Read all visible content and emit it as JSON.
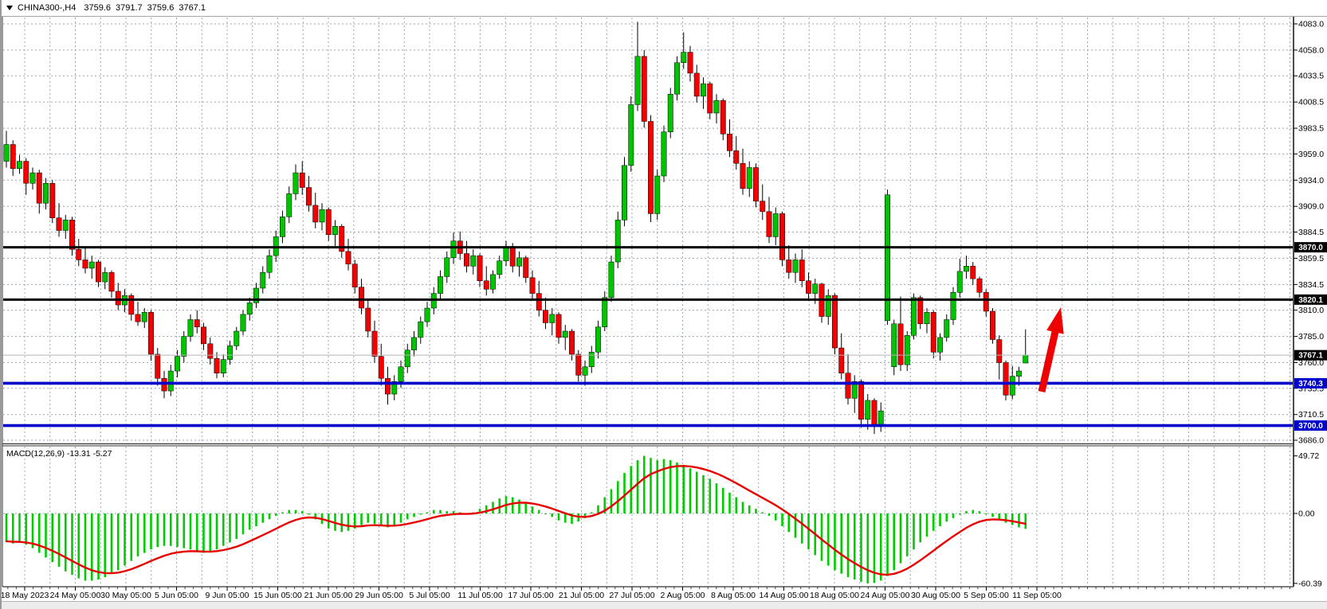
{
  "topbar": {
    "symbol": "CHINA300-,H4",
    "open": "3759.6",
    "high": "3791.7",
    "low": "3759.6",
    "close": "3767.1"
  },
  "colors": {
    "bull": "#00c400",
    "bear": "#f40000",
    "wick": "#000000",
    "grid": "#9aa5b0",
    "black_line": "#000000",
    "blue_line": "#0000cc",
    "current_price_line": "#b4b4b4",
    "macd_bar": "#00cc00",
    "signal_line": "#e80000",
    "arrow": "#ee0000",
    "axis_text": "#000000",
    "label_text": "#ffffff"
  },
  "chart_data": {
    "type": "candlestick+macd",
    "symbol": "CHINA300",
    "timeframe": "H4",
    "title": "CHINA300-,H4  3759.6 3791.7 3759.6 3767.1",
    "x_labels": [
      "18 May 2023",
      "24 May 05:00",
      "30 May 05:00",
      "5 Jun 05:00",
      "9 Jun 05:00",
      "15 Jun 05:00",
      "21 Jun 05:00",
      "29 Jun 05:00",
      "5 Jul 05:00",
      "11 Jul 05:00",
      "17 Jul 05:00",
      "21 Jul 05:00",
      "27 Jul 05:00",
      "2 Aug 05:00",
      "8 Aug 05:00",
      "14 Aug 05:00",
      "18 Aug 05:00",
      "24 Aug 05:00",
      "30 Aug 05:00",
      "5 Sep 05:00",
      "11 Sep 05:00"
    ],
    "price_axis_ticks": [
      4083.0,
      4058.0,
      4033.5,
      4008.5,
      3983.5,
      3959.0,
      3934.0,
      3909.0,
      3884.5,
      3859.5,
      3834.5,
      3810.0,
      3785.0,
      3760.0,
      3735.5,
      3710.5,
      3686.0
    ],
    "price_range": [
      3686.0,
      4083.0
    ],
    "grid": true,
    "horizontal_lines": [
      {
        "price": 3870.0,
        "label": "3870.0",
        "color": "#000000"
      },
      {
        "price": 3820.1,
        "label": "3820.1",
        "color": "#000000"
      },
      {
        "price": 3740.3,
        "label": "3740.3",
        "color": "#0000cc"
      },
      {
        "price": 3700.0,
        "label": "3700.0",
        "color": "#0000cc"
      }
    ],
    "current_price": 3767.1,
    "current_price_label": "3767.1",
    "annotation_arrow": {
      "from": [
        1307,
        492
      ],
      "to": [
        1331,
        386
      ]
    },
    "candles": [
      [
        3952,
        3981,
        3946,
        3968
      ],
      [
        3968,
        3972,
        3938,
        3945
      ],
      [
        3945,
        3958,
        3940,
        3952
      ],
      [
        3952,
        3955,
        3920,
        3931
      ],
      [
        3931,
        3946,
        3925,
        3941
      ],
      [
        3941,
        3944,
        3902,
        3912
      ],
      [
        3912,
        3936,
        3906,
        3931
      ],
      [
        3931,
        3934,
        3893,
        3898
      ],
      [
        3898,
        3912,
        3880,
        3886
      ],
      [
        3886,
        3901,
        3878,
        3896
      ],
      [
        3896,
        3899,
        3862,
        3868
      ],
      [
        3868,
        3878,
        3852,
        3858
      ],
      [
        3858,
        3870,
        3845,
        3850
      ],
      [
        3850,
        3862,
        3840,
        3856
      ],
      [
        3856,
        3858,
        3832,
        3837
      ],
      [
        3837,
        3851,
        3830,
        3846
      ],
      [
        3846,
        3848,
        3822,
        3828
      ],
      [
        3828,
        3836,
        3810,
        3815
      ],
      [
        3815,
        3830,
        3808,
        3824
      ],
      [
        3824,
        3826,
        3800,
        3806
      ],
      [
        3806,
        3818,
        3795,
        3799
      ],
      [
        3799,
        3812,
        3793,
        3808
      ],
      [
        3808,
        3810,
        3762,
        3768
      ],
      [
        3768,
        3774,
        3738,
        3745
      ],
      [
        3745,
        3752,
        3726,
        3733
      ],
      [
        3733,
        3758,
        3728,
        3752
      ],
      [
        3752,
        3772,
        3746,
        3766
      ],
      [
        3766,
        3790,
        3760,
        3785
      ],
      [
        3785,
        3806,
        3780,
        3801
      ],
      [
        3801,
        3810,
        3788,
        3794
      ],
      [
        3794,
        3798,
        3772,
        3778
      ],
      [
        3778,
        3784,
        3758,
        3764
      ],
      [
        3764,
        3770,
        3745,
        3750
      ],
      [
        3750,
        3768,
        3746,
        3763
      ],
      [
        3763,
        3781,
        3758,
        3776
      ],
      [
        3776,
        3794,
        3772,
        3790
      ],
      [
        3790,
        3810,
        3786,
        3806
      ],
      [
        3806,
        3822,
        3800,
        3817
      ],
      [
        3817,
        3836,
        3812,
        3831
      ],
      [
        3831,
        3852,
        3826,
        3846
      ],
      [
        3846,
        3868,
        3840,
        3862
      ],
      [
        3862,
        3886,
        3856,
        3880
      ],
      [
        3880,
        3905,
        3874,
        3899
      ],
      [
        3899,
        3928,
        3893,
        3921
      ],
      [
        3921,
        3949,
        3915,
        3941
      ],
      [
        3941,
        3952,
        3920,
        3927
      ],
      [
        3927,
        3938,
        3904,
        3910
      ],
      [
        3910,
        3922,
        3888,
        3894
      ],
      [
        3894,
        3912,
        3886,
        3906
      ],
      [
        3906,
        3908,
        3876,
        3882
      ],
      [
        3882,
        3896,
        3870,
        3890
      ],
      [
        3890,
        3892,
        3860,
        3866
      ],
      [
        3866,
        3878,
        3848,
        3854
      ],
      [
        3854,
        3858,
        3826,
        3832
      ],
      [
        3832,
        3840,
        3806,
        3812
      ],
      [
        3812,
        3820,
        3784,
        3790
      ],
      [
        3790,
        3800,
        3760,
        3766
      ],
      [
        3766,
        3778,
        3738,
        3745
      ],
      [
        3745,
        3756,
        3720,
        3730
      ],
      [
        3730,
        3748,
        3724,
        3742
      ],
      [
        3742,
        3762,
        3736,
        3756
      ],
      [
        3756,
        3778,
        3750,
        3772
      ],
      [
        3772,
        3790,
        3766,
        3784
      ],
      [
        3784,
        3804,
        3778,
        3799
      ],
      [
        3799,
        3818,
        3794,
        3812
      ],
      [
        3812,
        3832,
        3806,
        3826
      ],
      [
        3826,
        3848,
        3820,
        3842
      ],
      [
        3842,
        3866,
        3836,
        3860
      ],
      [
        3860,
        3884,
        3854,
        3876
      ],
      [
        3876,
        3885,
        3858,
        3864
      ],
      [
        3864,
        3876,
        3846,
        3852
      ],
      [
        3852,
        3868,
        3844,
        3862
      ],
      [
        3862,
        3864,
        3832,
        3838
      ],
      [
        3838,
        3852,
        3824,
        3830
      ],
      [
        3830,
        3848,
        3826,
        3844
      ],
      [
        3844,
        3862,
        3840,
        3857
      ],
      [
        3857,
        3876,
        3852,
        3870
      ],
      [
        3870,
        3874,
        3846,
        3852
      ],
      [
        3852,
        3866,
        3842,
        3860
      ],
      [
        3860,
        3862,
        3836,
        3841
      ],
      [
        3841,
        3848,
        3820,
        3826
      ],
      [
        3826,
        3838,
        3804,
        3810
      ],
      [
        3810,
        3822,
        3792,
        3798
      ],
      [
        3798,
        3812,
        3786,
        3806
      ],
      [
        3806,
        3808,
        3778,
        3784
      ],
      [
        3784,
        3796,
        3772,
        3790
      ],
      [
        3790,
        3792,
        3762,
        3768
      ],
      [
        3768,
        3772,
        3742,
        3748
      ],
      [
        3748,
        3762,
        3738,
        3756
      ],
      [
        3756,
        3776,
        3750,
        3770
      ],
      [
        3770,
        3800,
        3764,
        3794
      ],
      [
        3794,
        3828,
        3790,
        3822
      ],
      [
        3822,
        3862,
        3818,
        3856
      ],
      [
        3856,
        3904,
        3850,
        3896
      ],
      [
        3896,
        3956,
        3890,
        3948
      ],
      [
        3948,
        4014,
        3942,
        4006
      ],
      [
        4006,
        4085,
        4000,
        4052
      ],
      [
        4052,
        4058,
        3984,
        3990
      ],
      [
        3990,
        3996,
        3894,
        3902
      ],
      [
        3902,
        3944,
        3896,
        3938
      ],
      [
        3938,
        3986,
        3932,
        3980
      ],
      [
        3980,
        4022,
        3974,
        4016
      ],
      [
        4016,
        4052,
        4010,
        4046
      ],
      [
        4046,
        4075,
        4040,
        4056
      ],
      [
        4056,
        4062,
        4028,
        4036
      ],
      [
        4036,
        4044,
        4008,
        4014
      ],
      [
        4014,
        4032,
        4002,
        4026
      ],
      [
        4026,
        4028,
        3992,
        3998
      ],
      [
        3998,
        4016,
        3988,
        4010
      ],
      [
        4010,
        4012,
        3972,
        3978
      ],
      [
        3978,
        3992,
        3956,
        3962
      ],
      [
        3962,
        3976,
        3944,
        3950
      ],
      [
        3950,
        3964,
        3920,
        3926
      ],
      [
        3926,
        3952,
        3918,
        3946
      ],
      [
        3946,
        3950,
        3908,
        3914
      ],
      [
        3914,
        3930,
        3896,
        3904
      ],
      [
        3904,
        3918,
        3874,
        3880
      ],
      [
        3880,
        3908,
        3872,
        3902
      ],
      [
        3902,
        3904,
        3852,
        3858
      ],
      [
        3858,
        3872,
        3840,
        3846
      ],
      [
        3846,
        3864,
        3836,
        3858
      ],
      [
        3858,
        3868,
        3832,
        3838
      ],
      [
        3838,
        3846,
        3820,
        3826
      ],
      [
        3826,
        3840,
        3816,
        3835
      ],
      [
        3835,
        3836,
        3798,
        3804
      ],
      [
        3804,
        3830,
        3796,
        3824
      ],
      [
        3824,
        3826,
        3768,
        3774
      ],
      [
        3774,
        3788,
        3744,
        3750
      ],
      [
        3750,
        3768,
        3720,
        3726
      ],
      [
        3726,
        3748,
        3712,
        3742
      ],
      [
        3742,
        3744,
        3698,
        3706
      ],
      [
        3706,
        3730,
        3696,
        3724
      ],
      [
        3724,
        3726,
        3692,
        3699
      ],
      [
        3699,
        3722,
        3694,
        3714
      ],
      [
        3800,
        3925,
        3796,
        3920
      ],
      [
        3756,
        3801,
        3748,
        3797
      ],
      [
        3797,
        3823,
        3752,
        3758
      ],
      [
        3758,
        3790,
        3752,
        3786
      ],
      [
        3786,
        3826,
        3782,
        3822
      ],
      [
        3822,
        3824,
        3792,
        3797
      ],
      [
        3797,
        3812,
        3788,
        3808
      ],
      [
        3808,
        3810,
        3764,
        3770
      ],
      [
        3770,
        3788,
        3762,
        3784
      ],
      [
        3784,
        3806,
        3780,
        3801
      ],
      [
        3801,
        3832,
        3796,
        3827
      ],
      [
        3827,
        3859,
        3822,
        3847
      ],
      [
        3847,
        3862,
        3840,
        3852
      ],
      [
        3852,
        3856,
        3834,
        3840
      ],
      [
        3840,
        3842,
        3822,
        3827
      ],
      [
        3827,
        3830,
        3804,
        3809
      ],
      [
        3809,
        3812,
        3778,
        3782
      ],
      [
        3782,
        3786,
        3744,
        3760
      ],
      [
        3760,
        3762,
        3724,
        3729
      ],
      [
        3729,
        3757,
        3725,
        3747
      ],
      [
        3747,
        3756,
        3738,
        3752
      ],
      [
        3759.6,
        3791.7,
        3759.6,
        3767.1
      ]
    ],
    "macd": {
      "label": "MACD(12,26,9)",
      "macd_value": -13.31,
      "signal_value": -5.27,
      "display": "MACD(12,26,9) -13.31 -5.27",
      "axis_ticks": [
        49.72,
        0.0,
        -60.39
      ],
      "signal_ema_period": 9,
      "histogram": [
        -24,
        -26,
        -25,
        -27,
        -30,
        -34,
        -38,
        -42,
        -46,
        -50,
        -53,
        -56,
        -58,
        -58,
        -57,
        -55,
        -52,
        -49,
        -45,
        -41,
        -37,
        -34,
        -31,
        -29,
        -28,
        -28,
        -29,
        -30,
        -31,
        -33,
        -34,
        -33,
        -31,
        -28,
        -25,
        -22,
        -18,
        -14,
        -11,
        -8,
        -5,
        -2,
        1,
        3,
        3,
        2,
        -1,
        -5,
        -9,
        -13,
        -15,
        -16,
        -15,
        -13,
        -10,
        -8,
        -9,
        -11,
        -12,
        -10,
        -8,
        -5,
        -3,
        -1,
        1,
        3,
        3,
        2,
        2,
        1,
        -1,
        1,
        4,
        7,
        10,
        13,
        15,
        14,
        12,
        9,
        6,
        3,
        0,
        -3,
        -6,
        -8,
        -9,
        -7,
        -4,
        1,
        7,
        14,
        21,
        28,
        35,
        41,
        46,
        49.72,
        48,
        46,
        47,
        46,
        44,
        42,
        39,
        36,
        33,
        30,
        26,
        22,
        18,
        14,
        10,
        7,
        4,
        1,
        -2,
        -6,
        -11,
        -16,
        -21,
        -26,
        -31,
        -36,
        -41,
        -45,
        -49,
        -52,
        -55,
        -57,
        -59,
        -60.39,
        -60,
        -58,
        -54,
        -49,
        -43,
        -37,
        -31,
        -25,
        -20,
        -15,
        -11,
        -7,
        -4,
        -1,
        2,
        3,
        2,
        0,
        -3,
        -6,
        -8,
        -10,
        -12,
        -13.31
      ]
    }
  }
}
